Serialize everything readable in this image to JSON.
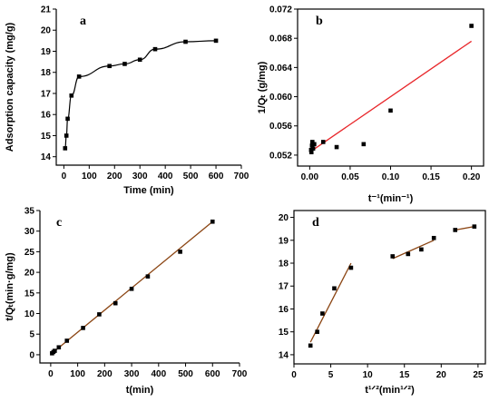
{
  "chart_data": [
    {
      "panel": "a",
      "type": "scatter",
      "xlabel": "Time (min)",
      "ylabel": "Adsorption capacity (mg/g)",
      "xlim": [
        -30,
        700
      ],
      "ylim": [
        13.6,
        21
      ],
      "xticks": [
        0,
        100,
        200,
        300,
        400,
        500,
        600,
        700
      ],
      "yticks": [
        14,
        15,
        16,
        17,
        18,
        19,
        20,
        21
      ],
      "x": [
        5,
        10,
        15,
        30,
        60,
        180,
        240,
        300,
        360,
        480,
        600
      ],
      "y": [
        14.4,
        15.0,
        15.8,
        16.9,
        17.8,
        18.3,
        18.4,
        18.6,
        19.1,
        19.45,
        19.5
      ],
      "fit": {
        "type": "curve",
        "color": "#000000"
      }
    },
    {
      "panel": "b",
      "type": "scatter",
      "xlabel": "t⁻¹(min⁻¹)",
      "ylabel": "1/Qₜ (g/mg)",
      "xlim": [
        -0.015,
        0.215
      ],
      "ylim": [
        0.0505,
        0.072
      ],
      "xticks": [
        0.0,
        0.05,
        0.1,
        0.15,
        0.2
      ],
      "xtick_labels": [
        "0.00",
        "0.05",
        "0.10",
        "0.15",
        "0.20"
      ],
      "yticks": [
        0.052,
        0.056,
        0.06,
        0.064,
        0.068,
        0.072
      ],
      "ytick_labels": [
        "0.052",
        "0.056",
        "0.060",
        "0.064",
        "0.068",
        "0.072"
      ],
      "x": [
        0.0017,
        0.0021,
        0.0028,
        0.0033,
        0.0042,
        0.0056,
        0.0167,
        0.0333,
        0.0667,
        0.1,
        0.2
      ],
      "y": [
        0.0527,
        0.0524,
        0.0533,
        0.0538,
        0.0529,
        0.0535,
        0.0538,
        0.0531,
        0.0535,
        0.0581,
        0.0697
      ],
      "fit": {
        "x": [
          0,
          0.2
        ],
        "y": [
          0.0524,
          0.0676
        ],
        "color": "#e8262a"
      }
    },
    {
      "panel": "c",
      "type": "scatter",
      "xlabel": "t(min)",
      "ylabel": "t/Qₜ(min·g/mg)",
      "xlim": [
        -40,
        700
      ],
      "ylim": [
        -2,
        35
      ],
      "xticks": [
        0,
        100,
        200,
        300,
        400,
        500,
        600,
        700
      ],
      "yticks": [
        0,
        5,
        10,
        15,
        20,
        25,
        30,
        35
      ],
      "x": [
        5,
        10,
        15,
        30,
        60,
        120,
        180,
        240,
        300,
        360,
        480,
        600
      ],
      "y": [
        0.35,
        0.67,
        0.95,
        1.8,
        3.4,
        6.5,
        9.8,
        12.5,
        16.0,
        19.0,
        25.0,
        32.3
      ],
      "fit": {
        "x": [
          0,
          600
        ],
        "y": [
          0.1,
          32.3
        ],
        "color": "#8b4513"
      }
    },
    {
      "panel": "d",
      "type": "scatter",
      "xlabel": "t¹ᐟ²(min¹ᐟ²)",
      "ylabel": "",
      "xlim": [
        0,
        26
      ],
      "ylim": [
        13.6,
        20.3
      ],
      "xticks": [
        0,
        5,
        10,
        15,
        20,
        25
      ],
      "yticks": [
        14,
        15,
        16,
        17,
        18,
        19,
        20
      ],
      "x": [
        2.24,
        3.16,
        3.87,
        5.48,
        7.75,
        13.4,
        15.5,
        17.3,
        19.0,
        21.9,
        24.5
      ],
      "y": [
        14.4,
        15.0,
        15.8,
        16.9,
        17.8,
        18.3,
        18.4,
        18.6,
        19.1,
        19.45,
        19.6
      ],
      "fits": [
        {
          "x": [
            2.24,
            7.75
          ],
          "y": [
            14.55,
            18.0
          ]
        },
        {
          "x": [
            13.4,
            19.0
          ],
          "y": [
            18.2,
            19.0
          ]
        },
        {
          "x": [
            21.9,
            24.5
          ],
          "y": [
            19.45,
            19.6
          ]
        }
      ],
      "fit_color": "#8b4513"
    }
  ]
}
